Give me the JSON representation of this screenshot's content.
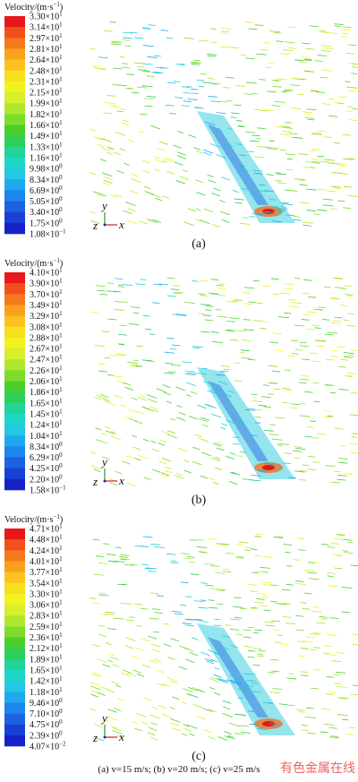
{
  "panels": [
    {
      "title": {
        "text": "Velocity/(m·s",
        "exponent": "−1",
        "close": ")"
      },
      "legend": [
        [
          "3.30×10",
          "1"
        ],
        [
          "3.14×10",
          "1"
        ],
        [
          "2.97×10",
          "1"
        ],
        [
          "2.81×10",
          "1"
        ],
        [
          "2.64×10",
          "1"
        ],
        [
          "2.48×10",
          "1"
        ],
        [
          "2.31×10",
          "1"
        ],
        [
          "2.15×10",
          "1"
        ],
        [
          "1.99×10",
          "1"
        ],
        [
          "1.82×10",
          "1"
        ],
        [
          "1.66×10",
          "1"
        ],
        [
          "1.49×10",
          "1"
        ],
        [
          "1.33×10",
          "1"
        ],
        [
          "1.16×10",
          "1"
        ],
        [
          "9.98×10",
          "0"
        ],
        [
          "8.34×10",
          "0"
        ],
        [
          "6.69×10",
          "0"
        ],
        [
          "5.05×10",
          "0"
        ],
        [
          "3.40×10",
          "0"
        ],
        [
          "1.75×10",
          "0"
        ],
        [
          "1.08×10",
          "−1"
        ]
      ],
      "axes": {
        "y": "y",
        "z": "z",
        "x": "x"
      },
      "label": "(a)"
    },
    {
      "title": {
        "text": "Velocity/(m·s",
        "exponent": "−1",
        "close": ")"
      },
      "legend": [
        [
          "4.10×10",
          "1"
        ],
        [
          "3.90×10",
          "1"
        ],
        [
          "3.70×10",
          "1"
        ],
        [
          "3.49×10",
          "1"
        ],
        [
          "3.29×10",
          "1"
        ],
        [
          "3.08×10",
          "1"
        ],
        [
          "2.88×10",
          "1"
        ],
        [
          "2.67×10",
          "1"
        ],
        [
          "2.47×10",
          "1"
        ],
        [
          "2.26×10",
          "1"
        ],
        [
          "2.06×10",
          "1"
        ],
        [
          "1.86×10",
          "1"
        ],
        [
          "1.65×10",
          "1"
        ],
        [
          "1.45×10",
          "1"
        ],
        [
          "1.24×10",
          "1"
        ],
        [
          "1.04×10",
          "1"
        ],
        [
          "8.34×10",
          "0"
        ],
        [
          "6.29×10",
          "0"
        ],
        [
          "4.25×10",
          "0"
        ],
        [
          "2.20×10",
          "0"
        ],
        [
          "1.58×10",
          "−1"
        ]
      ],
      "axes": {
        "y": "y",
        "z": "z",
        "x": "x"
      },
      "label": "(b)"
    },
    {
      "title": {
        "text": "Velocity/(m·s",
        "exponent": "−1",
        "close": ")"
      },
      "legend": [
        [
          "4.71×10",
          "1"
        ],
        [
          "4.48×10",
          "1"
        ],
        [
          "4.24×10",
          "1"
        ],
        [
          "4.01×10",
          "1"
        ],
        [
          "3.77×10",
          "1"
        ],
        [
          "3.54×10",
          "1"
        ],
        [
          "3.30×10",
          "1"
        ],
        [
          "3.06×10",
          "1"
        ],
        [
          "2.83×10",
          "1"
        ],
        [
          "2.59×10",
          "1"
        ],
        [
          "2.36×10",
          "1"
        ],
        [
          "2.12×10",
          "1"
        ],
        [
          "1.89×10",
          "1"
        ],
        [
          "1.65×10",
          "1"
        ],
        [
          "1.42×10",
          "1"
        ],
        [
          "1.18×10",
          "1"
        ],
        [
          "9.46×10",
          "0"
        ],
        [
          "7.10×10",
          "0"
        ],
        [
          "4.75×10",
          "0"
        ],
        [
          "2.39×10",
          "0"
        ],
        [
          "4.07×10",
          "−2"
        ]
      ],
      "axes": {
        "y": "y",
        "z": "z",
        "x": "x"
      },
      "label": "(c)"
    }
  ],
  "caption": "(a) v=15 m/s; (b) v=20 m/s; (c) v=25 m/s",
  "watermark": "有色金属在线"
}
